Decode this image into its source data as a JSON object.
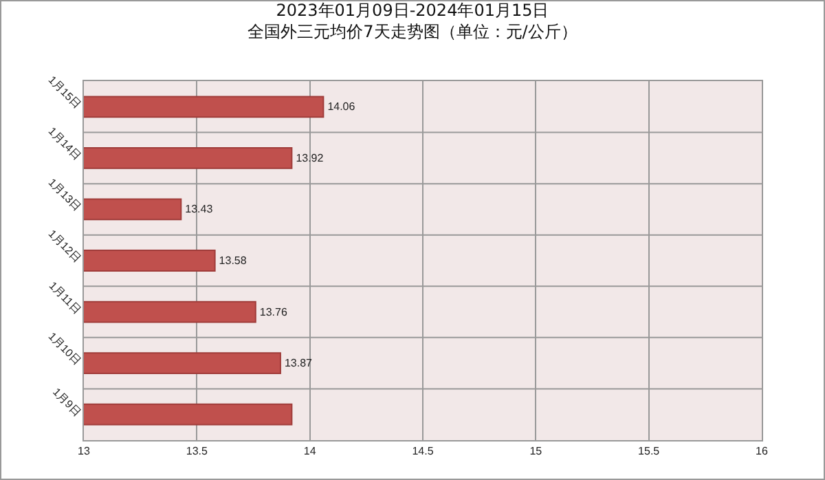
{
  "chart_data": {
    "type": "bar",
    "orientation": "horizontal",
    "title": "2023年01月09日-2024年01月15日",
    "subtitle": "全国外三元均价7天走势图（单位：元/公斤）",
    "categories": [
      "1月15日",
      "1月14日",
      "1月13日",
      "1月12日",
      "1月11日",
      "1月10日",
      "1月9日"
    ],
    "values": [
      14.06,
      13.92,
      13.43,
      13.58,
      13.76,
      13.87,
      13.92
    ],
    "value_labels": [
      "14.06",
      "13.92",
      "13.43",
      "13.58",
      "13.76",
      "13.87",
      null
    ],
    "color": "#c0504d",
    "xlim": [
      13,
      16
    ],
    "xticks": [
      13,
      13.5,
      14,
      14.5,
      15,
      15.5,
      16
    ],
    "grid": true,
    "legend": false
  }
}
